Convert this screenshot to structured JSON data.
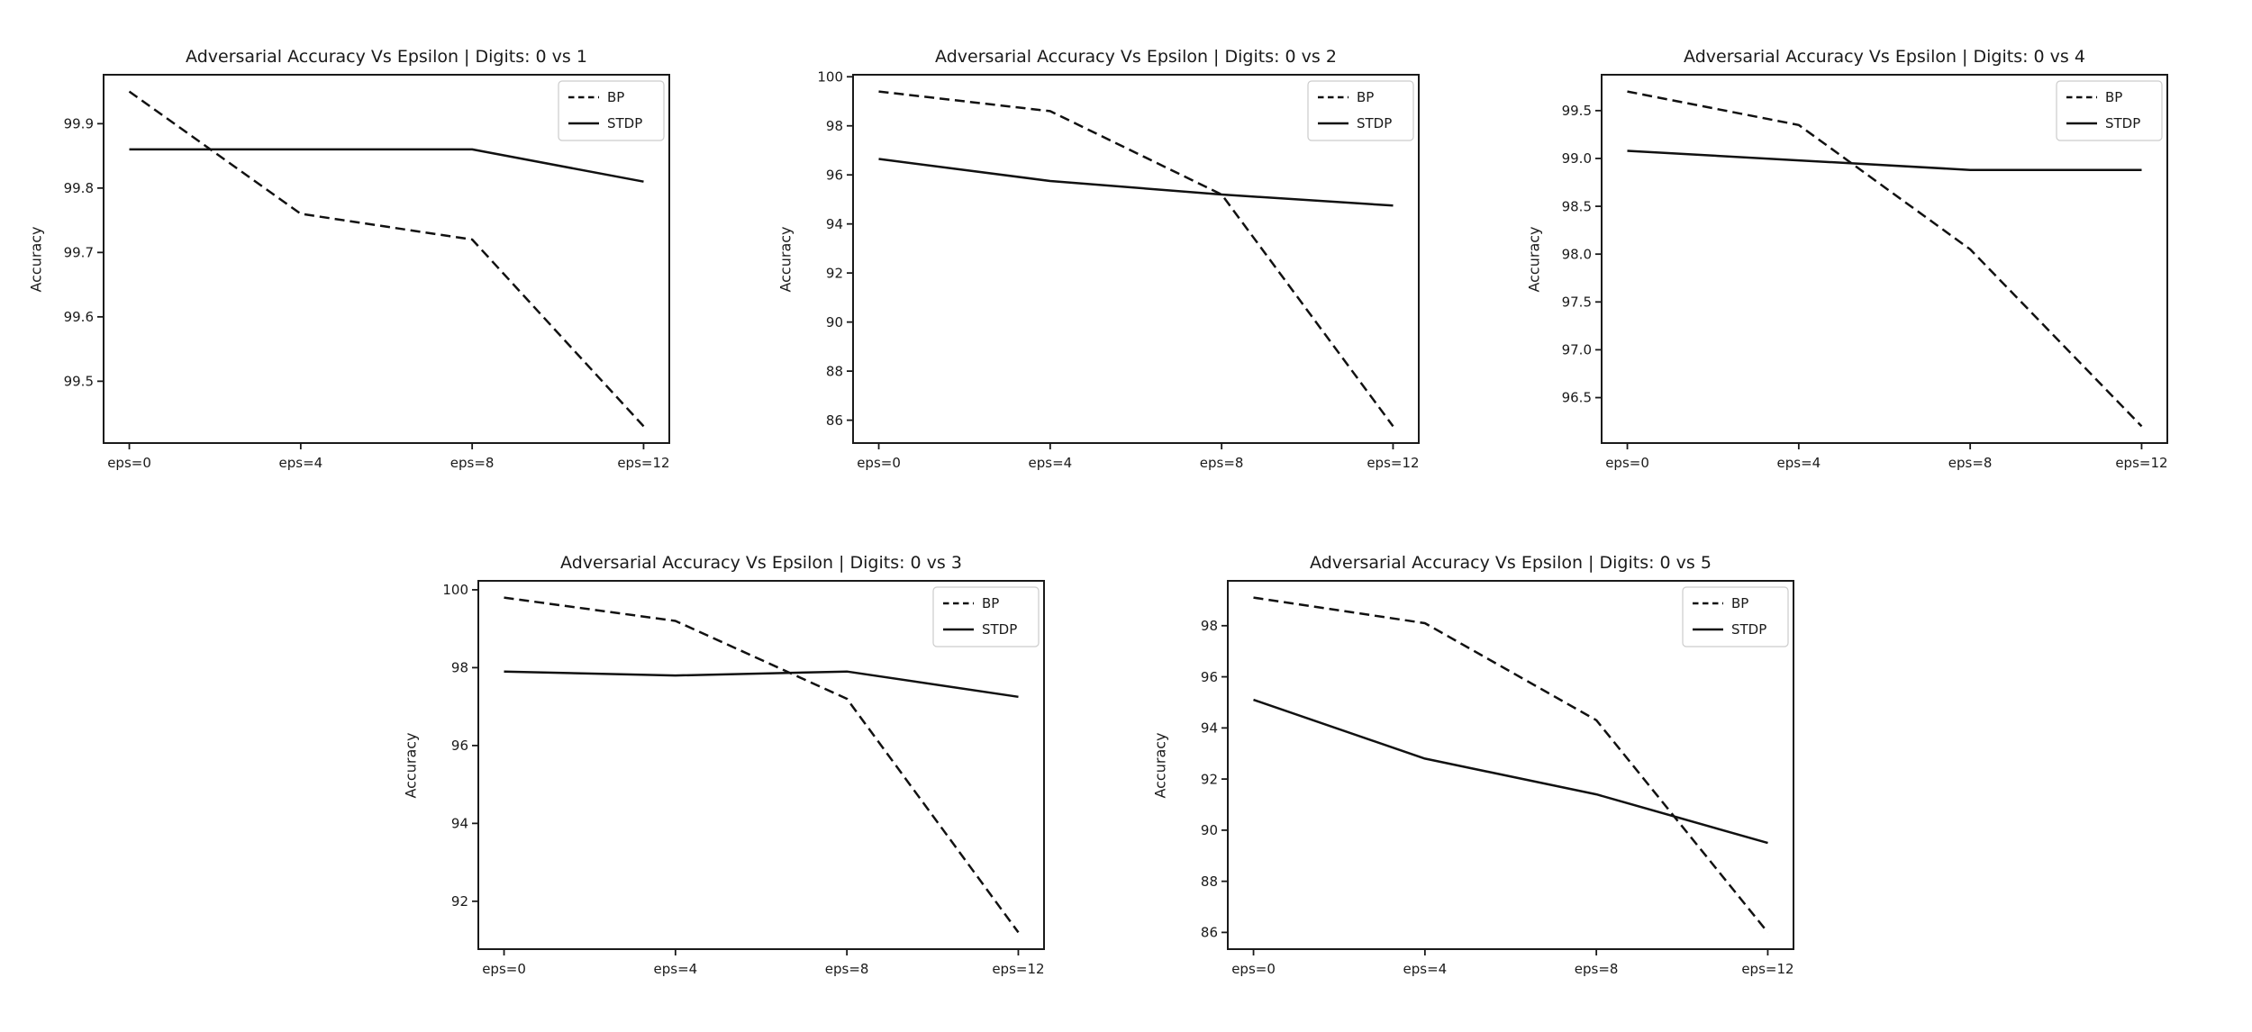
{
  "figure": {
    "background": "#ffffff",
    "ink_color": "#1a1a1a",
    "line_color": "#111111",
    "legend_border_color": "#cccccc",
    "legend_fill_color": "#ffffff"
  },
  "chart_data": [
    {
      "id": "digits-0-vs-1",
      "type": "line",
      "title": "Adversarial Accuracy Vs Epsilon | Digits: 0 vs 1",
      "xlabel": "",
      "ylabel": "Accuracy",
      "categories": [
        "eps=0",
        "eps=4",
        "eps=8",
        "eps=12"
      ],
      "series": [
        {
          "name": "BP",
          "style": "dashed",
          "values": [
            99.95,
            99.76,
            99.72,
            99.43
          ]
        },
        {
          "name": "STDP",
          "style": "solid",
          "values": [
            99.86,
            99.86,
            99.86,
            99.81
          ]
        }
      ],
      "ylim": [
        99.404,
        99.976
      ],
      "yticks": [
        {
          "v": 99.5,
          "label": "99.5"
        },
        {
          "v": 99.6,
          "label": "99.6"
        },
        {
          "v": 99.7,
          "label": "99.7"
        },
        {
          "v": 99.8,
          "label": "99.8"
        },
        {
          "v": 99.9,
          "label": "99.9"
        }
      ],
      "legend_position": "upper right",
      "grid": false
    },
    {
      "id": "digits-0-vs-2",
      "type": "line",
      "title": "Adversarial Accuracy Vs Epsilon | Digits: 0 vs 2",
      "xlabel": "",
      "ylabel": "Accuracy",
      "categories": [
        "eps=0",
        "eps=4",
        "eps=8",
        "eps=12"
      ],
      "series": [
        {
          "name": "BP",
          "style": "dashed",
          "values": [
            99.4,
            98.6,
            95.2,
            85.75
          ]
        },
        {
          "name": "STDP",
          "style": "solid",
          "values": [
            96.65,
            95.75,
            95.2,
            94.75
          ]
        }
      ],
      "ylim": [
        85.0675,
        100.0825
      ],
      "yticks": [
        {
          "v": 86,
          "label": "86"
        },
        {
          "v": 88,
          "label": "88"
        },
        {
          "v": 90,
          "label": "90"
        },
        {
          "v": 92,
          "label": "92"
        },
        {
          "v": 94,
          "label": "94"
        },
        {
          "v": 96,
          "label": "96"
        },
        {
          "v": 98,
          "label": "98"
        },
        {
          "v": 100,
          "label": "100"
        }
      ],
      "legend_position": "upper right",
      "grid": false
    },
    {
      "id": "digits-0-vs-4",
      "type": "line",
      "title": "Adversarial Accuracy Vs Epsilon | Digits: 0 vs 4",
      "xlabel": "",
      "ylabel": "Accuracy",
      "categories": [
        "eps=0",
        "eps=4",
        "eps=8",
        "eps=12"
      ],
      "series": [
        {
          "name": "BP",
          "style": "dashed",
          "values": [
            99.7,
            99.35,
            98.05,
            96.2
          ]
        },
        {
          "name": "STDP",
          "style": "solid",
          "values": [
            99.08,
            98.98,
            98.88,
            98.88
          ]
        }
      ],
      "ylim": [
        96.025,
        99.875
      ],
      "yticks": [
        {
          "v": 96.5,
          "label": "96.5"
        },
        {
          "v": 97.0,
          "label": "97.0"
        },
        {
          "v": 97.5,
          "label": "97.5"
        },
        {
          "v": 98.0,
          "label": "98.0"
        },
        {
          "v": 98.5,
          "label": "98.5"
        },
        {
          "v": 99.0,
          "label": "99.0"
        },
        {
          "v": 99.5,
          "label": "99.5"
        }
      ],
      "legend_position": "upper right",
      "grid": false
    },
    {
      "id": "digits-0-vs-3",
      "type": "line",
      "title": "Adversarial Accuracy Vs Epsilon | Digits: 0 vs 3",
      "xlabel": "",
      "ylabel": "Accuracy",
      "categories": [
        "eps=0",
        "eps=4",
        "eps=8",
        "eps=12"
      ],
      "series": [
        {
          "name": "BP",
          "style": "dashed",
          "values": [
            99.8,
            99.2,
            97.2,
            91.2
          ]
        },
        {
          "name": "STDP",
          "style": "solid",
          "values": [
            97.9,
            97.8,
            97.9,
            97.25
          ]
        }
      ],
      "ylim": [
        90.77,
        100.23
      ],
      "yticks": [
        {
          "v": 92,
          "label": "92"
        },
        {
          "v": 94,
          "label": "94"
        },
        {
          "v": 96,
          "label": "96"
        },
        {
          "v": 98,
          "label": "98"
        },
        {
          "v": 100,
          "label": "100"
        }
      ],
      "legend_position": "upper right",
      "grid": false
    },
    {
      "id": "digits-0-vs-5",
      "type": "line",
      "title": "Adversarial Accuracy Vs Epsilon | Digits: 0 vs 5",
      "xlabel": "",
      "ylabel": "Accuracy",
      "categories": [
        "eps=0",
        "eps=4",
        "eps=8",
        "eps=12"
      ],
      "series": [
        {
          "name": "BP",
          "style": "dashed",
          "values": [
            99.1,
            98.1,
            94.3,
            86.0
          ]
        },
        {
          "name": "STDP",
          "style": "solid",
          "values": [
            95.1,
            92.8,
            91.4,
            89.5
          ]
        }
      ],
      "ylim": [
        85.345,
        99.755
      ],
      "yticks": [
        {
          "v": 86,
          "label": "86"
        },
        {
          "v": 88,
          "label": "88"
        },
        {
          "v": 90,
          "label": "90"
        },
        {
          "v": 92,
          "label": "92"
        },
        {
          "v": 94,
          "label": "94"
        },
        {
          "v": 96,
          "label": "96"
        },
        {
          "v": 98,
          "label": "98"
        }
      ],
      "legend_position": "upper right",
      "grid": false
    }
  ]
}
